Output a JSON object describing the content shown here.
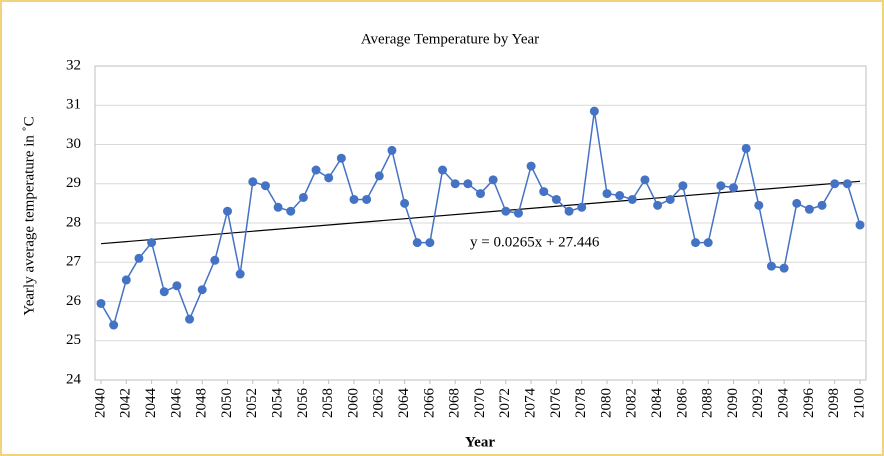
{
  "chart_data": {
    "type": "line",
    "title": "Average Temperature by Year",
    "x_label": "Year",
    "y_label": "Yearly average temperature in ˚C",
    "x": [
      2040,
      2041,
      2042,
      2043,
      2044,
      2045,
      2046,
      2047,
      2048,
      2049,
      2050,
      2051,
      2052,
      2053,
      2054,
      2055,
      2056,
      2057,
      2058,
      2059,
      2060,
      2061,
      2062,
      2063,
      2064,
      2065,
      2066,
      2067,
      2068,
      2069,
      2070,
      2071,
      2072,
      2073,
      2074,
      2075,
      2076,
      2077,
      2078,
      2079,
      2080,
      2081,
      2082,
      2083,
      2084,
      2085,
      2086,
      2087,
      2088,
      2089,
      2090,
      2091,
      2092,
      2093,
      2094,
      2095,
      2096,
      2097,
      2098,
      2099,
      2100
    ],
    "series": [
      {
        "name": "Average temperature",
        "color": "#4472c4",
        "values": [
          25.95,
          25.4,
          26.55,
          27.1,
          27.5,
          26.25,
          26.4,
          25.55,
          26.3,
          27.05,
          28.3,
          26.7,
          29.05,
          28.95,
          28.4,
          28.3,
          28.65,
          29.35,
          29.15,
          29.65,
          28.6,
          28.6,
          29.2,
          29.85,
          28.5,
          27.5,
          27.5,
          29.35,
          29.0,
          29.0,
          28.75,
          29.1,
          28.3,
          28.25,
          29.45,
          28.8,
          28.6,
          28.3,
          28.4,
          30.85,
          28.75,
          28.7,
          28.6,
          29.1,
          28.45,
          28.6,
          28.95,
          27.5,
          27.5,
          28.95,
          28.9,
          29.9,
          28.45,
          26.9,
          26.85,
          28.5,
          28.35,
          28.45,
          29.0,
          29.0,
          27.95
        ]
      }
    ],
    "trendline": {
      "slope": 0.0265,
      "intercept": 27.446,
      "label": "y = 0.0265x + 27.446",
      "color": "#000000"
    },
    "xlim": [
      2040,
      2100
    ],
    "xticks": [
      2040,
      2042,
      2044,
      2046,
      2048,
      2050,
      2052,
      2054,
      2056,
      2058,
      2060,
      2062,
      2064,
      2066,
      2068,
      2070,
      2072,
      2074,
      2076,
      2078,
      2080,
      2082,
      2084,
      2086,
      2088,
      2090,
      2092,
      2094,
      2096,
      2098,
      2100
    ],
    "ylim": [
      24,
      32
    ],
    "yticks": [
      24,
      25,
      26,
      27,
      28,
      29,
      30,
      31,
      32
    ],
    "grid": true
  }
}
